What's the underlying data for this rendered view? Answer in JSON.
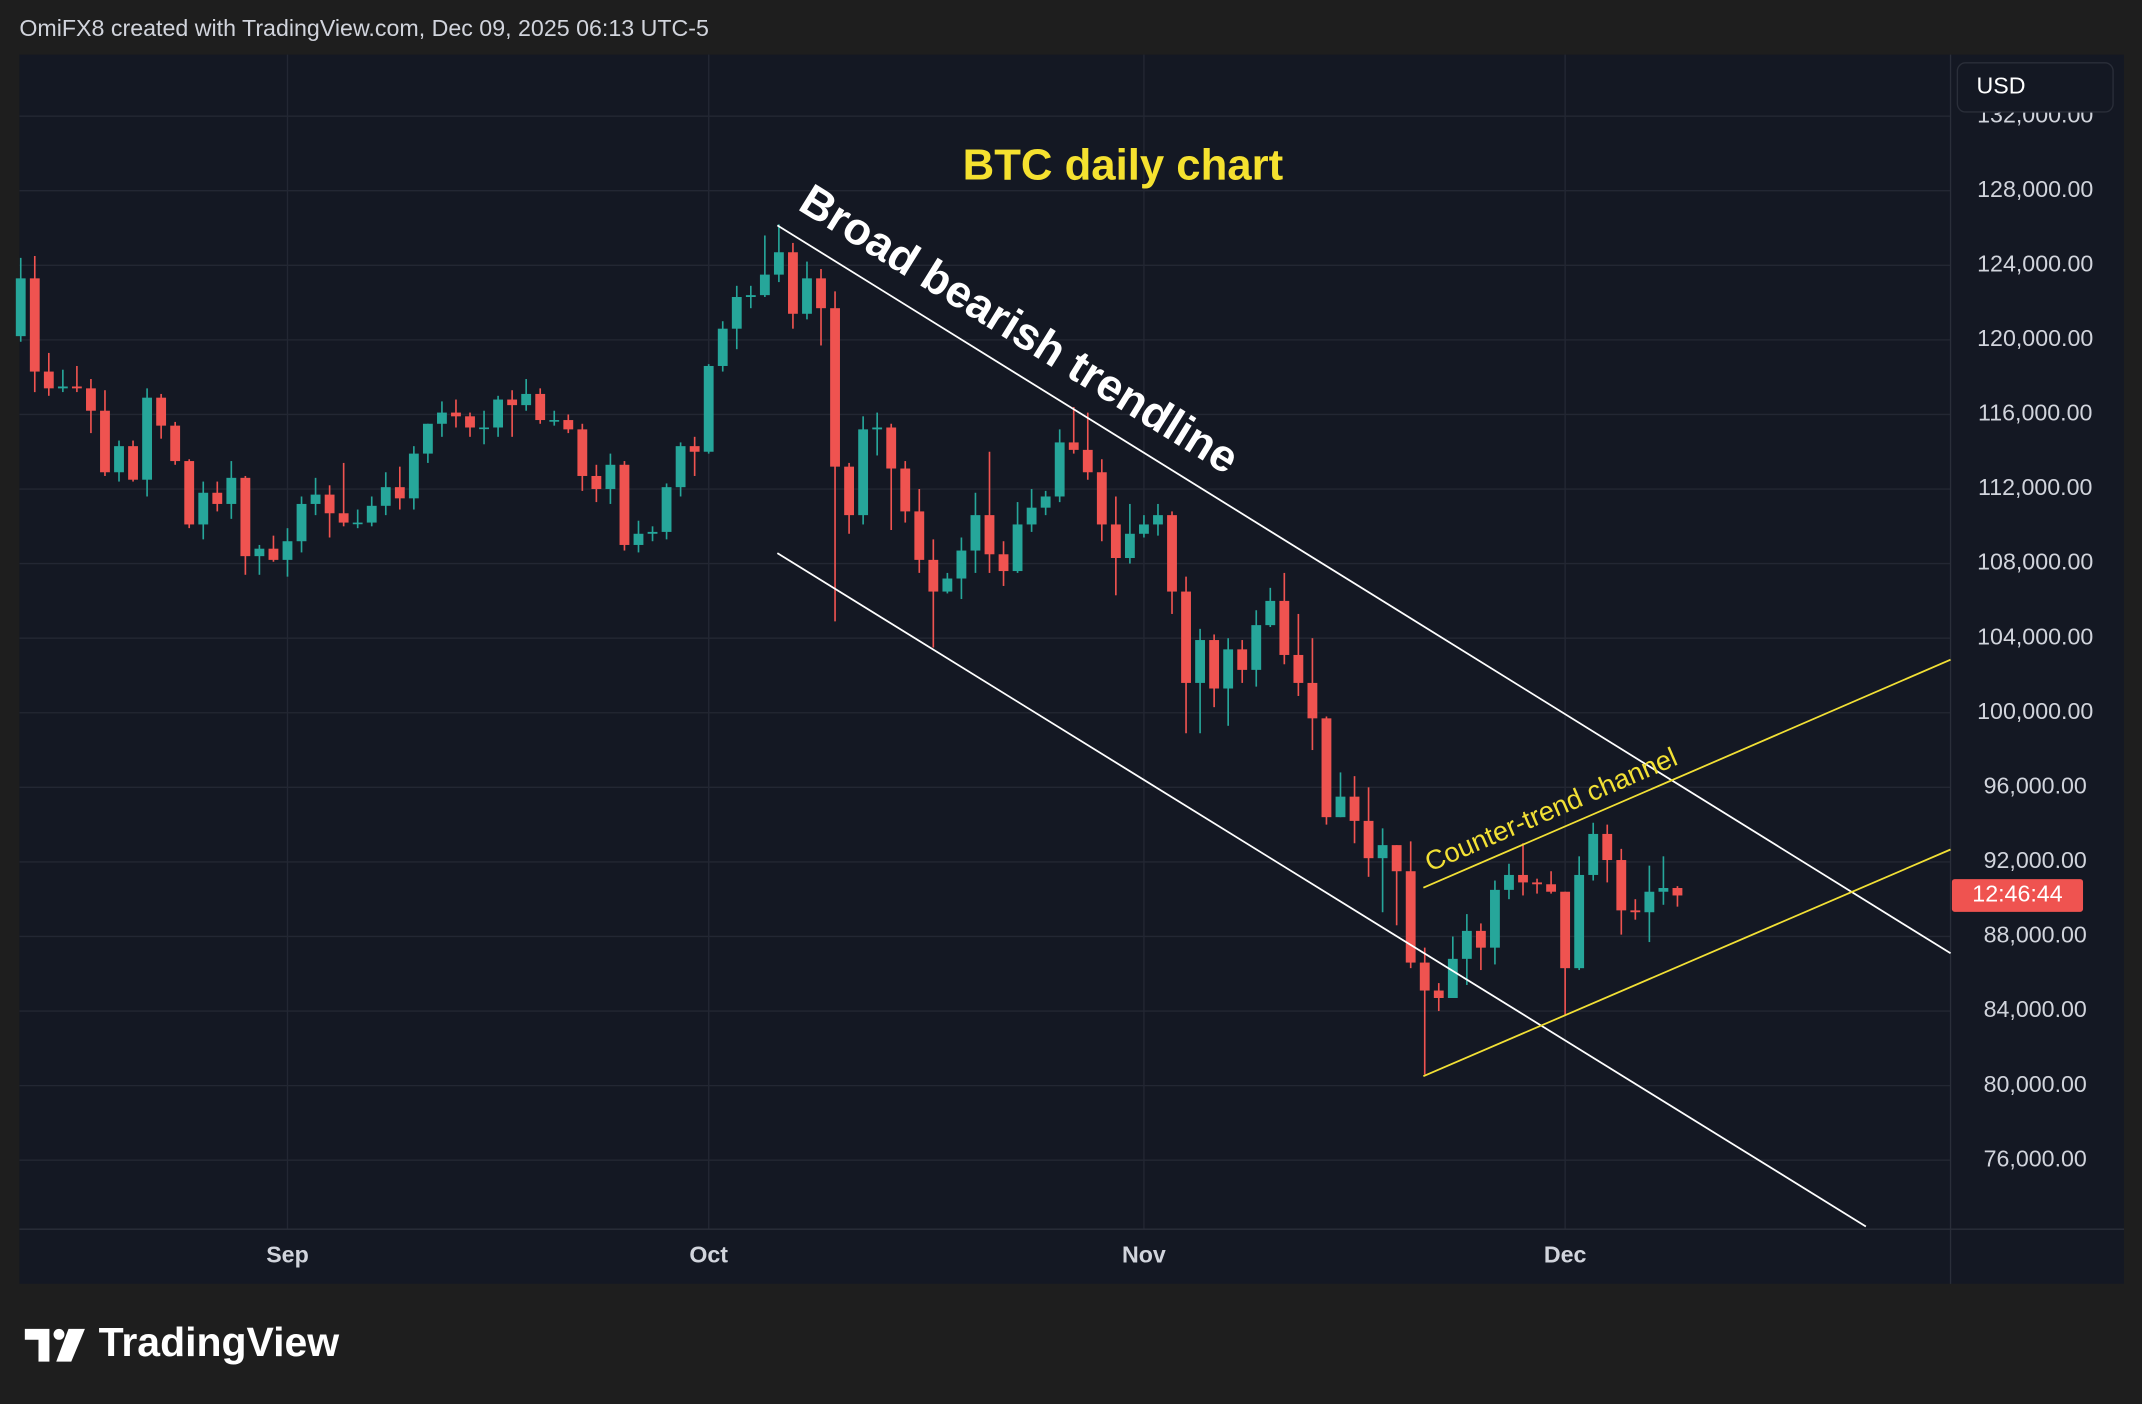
{
  "header": "OmiFX8 created with TradingView.com, Dec 09, 2025 06:13 UTC-5",
  "footer": {
    "logo": "TradingView"
  },
  "chart_data": {
    "type": "candlestick",
    "title": "BTC daily chart",
    "annotations": [
      "Broad bearish trendline",
      "Counter-trend channel"
    ],
    "currency": "USD",
    "countdown": "12:46:44",
    "up_color": "#26a69a",
    "down_color": "#ef5350",
    "grid": true,
    "categories": [
      null,
      null,
      null,
      null,
      null,
      null,
      null,
      null,
      null,
      null,
      null,
      null,
      null,
      null,
      null,
      null,
      null,
      null,
      null,
      "Sep",
      null,
      null,
      null,
      null,
      null,
      null,
      null,
      null,
      null,
      null,
      null,
      null,
      null,
      null,
      null,
      null,
      null,
      null,
      null,
      null,
      null,
      null,
      null,
      null,
      null,
      null,
      null,
      null,
      null,
      "Oct",
      null,
      null,
      null,
      null,
      null,
      null,
      null,
      null,
      null,
      null,
      null,
      null,
      null,
      null,
      null,
      null,
      null,
      null,
      null,
      null,
      null,
      null,
      null,
      null,
      null,
      null,
      null,
      null,
      null,
      null,
      "Nov",
      null,
      null,
      null,
      null,
      null,
      null,
      null,
      null,
      null,
      null,
      null,
      null,
      null,
      null,
      null,
      null,
      null,
      null,
      null,
      null,
      null,
      null,
      null,
      null,
      null,
      null,
      null,
      null,
      null,
      "Dec",
      null,
      null,
      null,
      null,
      null,
      null,
      null,
      null
    ],
    "open": [
      120200,
      123300,
      118300,
      117400,
      117500,
      117400,
      116200,
      112900,
      114300,
      112500,
      116900,
      115400,
      113500,
      110100,
      111800,
      111200,
      112600,
      108400,
      108800,
      108200,
      109200,
      111200,
      111700,
      110700,
      110200,
      110200,
      111100,
      112100,
      111500,
      113900,
      115500,
      116100,
      115900,
      115300,
      115300,
      116800,
      116500,
      117100,
      115700,
      115700,
      115200,
      112700,
      112000,
      113300,
      109000,
      109600,
      109700,
      112100,
      114300,
      114000,
      118600,
      120600,
      122300,
      122400,
      123500,
      124700,
      121400,
      123300,
      121700,
      113200,
      110600,
      115200,
      115300,
      113100,
      110800,
      108200,
      106500,
      107200,
      108700,
      110600,
      108500,
      107600,
      110100,
      111000,
      111600,
      114500,
      114100,
      112900,
      110100,
      108300,
      109600,
      110100,
      110600,
      106500,
      101600,
      103900,
      101300,
      103400,
      102300,
      104700,
      106000,
      103100,
      101600,
      99700,
      94400,
      95500,
      94200,
      92200,
      92900,
      91500,
      86600,
      85100,
      84700,
      86800,
      88300,
      87400,
      90500,
      91300,
      90900,
      90800,
      90400,
      86300,
      91300,
      93500,
      92100,
      89400,
      89300,
      90400,
      90600
    ],
    "high": [
      124400,
      124500,
      119300,
      118400,
      118600,
      117900,
      117300,
      114600,
      114600,
      117400,
      117100,
      115600,
      113600,
      112400,
      112400,
      113500,
      112700,
      109000,
      109500,
      109900,
      111600,
      112600,
      112200,
      113400,
      110900,
      111600,
      112900,
      113200,
      114300,
      115500,
      116700,
      116800,
      116100,
      116200,
      117000,
      117300,
      117900,
      117400,
      116200,
      116000,
      115500,
      113300,
      113900,
      113500,
      110300,
      110000,
      112300,
      114500,
      114800,
      118700,
      121000,
      122900,
      122900,
      125600,
      126200,
      125200,
      124200,
      123800,
      122600,
      113400,
      115900,
      116100,
      115500,
      113500,
      112000,
      109300,
      107500,
      109400,
      111800,
      114000,
      109200,
      111300,
      112000,
      111900,
      115200,
      116400,
      116100,
      113600,
      111600,
      111200,
      110600,
      111200,
      110800,
      107300,
      104500,
      104200,
      104000,
      103900,
      105500,
      106700,
      107500,
      105300,
      104000,
      99800,
      96800,
      96600,
      96000,
      93800,
      92900,
      93100,
      87400,
      85500,
      88000,
      89200,
      88700,
      91000,
      91900,
      93000,
      91100,
      91500,
      90400,
      92300,
      94100,
      94000,
      92700,
      90000,
      91800,
      92300,
      90700
    ],
    "low": [
      119900,
      117200,
      117000,
      117200,
      117200,
      115000,
      112700,
      112400,
      112400,
      111600,
      114700,
      113300,
      109900,
      109300,
      110800,
      110400,
      107400,
      107400,
      108100,
      107300,
      108600,
      110600,
      109400,
      110000,
      109900,
      110000,
      110600,
      110900,
      110900,
      113400,
      114800,
      115300,
      114800,
      114400,
      114800,
      114800,
      116200,
      115500,
      115400,
      115000,
      111900,
      111300,
      111200,
      108700,
      108600,
      109200,
      109300,
      111600,
      112700,
      113900,
      118300,
      119500,
      121700,
      122300,
      123100,
      120600,
      121100,
      119700,
      104900,
      109600,
      110100,
      113800,
      109800,
      110200,
      107500,
      103500,
      106400,
      106100,
      107500,
      107500,
      106800,
      107500,
      109700,
      110600,
      111300,
      113900,
      112500,
      109200,
      106300,
      108000,
      109400,
      109500,
      105300,
      98900,
      98900,
      100300,
      99300,
      101600,
      101400,
      104600,
      102600,
      100900,
      98000,
      94000,
      94400,
      93000,
      91200,
      89300,
      88600,
      86300,
      80600,
      84000,
      84700,
      85400,
      86200,
      86500,
      90000,
      90200,
      90300,
      90300,
      83800,
      86200,
      91000,
      90900,
      88100,
      88900,
      87700,
      89700,
      89600
    ],
    "close": [
      123300,
      118300,
      117400,
      117500,
      117400,
      116200,
      112900,
      114300,
      112500,
      116900,
      115400,
      113500,
      110100,
      111800,
      111200,
      112600,
      108400,
      108800,
      108200,
      109200,
      111200,
      111700,
      110700,
      110200,
      110200,
      111100,
      112100,
      111500,
      113900,
      115500,
      116100,
      115900,
      115300,
      115300,
      116800,
      116500,
      117100,
      115700,
      115700,
      115200,
      112700,
      112000,
      113300,
      109000,
      109600,
      109700,
      112100,
      114300,
      114000,
      118600,
      120600,
      122300,
      122400,
      123500,
      124700,
      121400,
      123300,
      121700,
      113200,
      110600,
      115200,
      115300,
      113100,
      110800,
      108200,
      106500,
      107200,
      108700,
      110600,
      108500,
      107600,
      110100,
      111000,
      111600,
      114500,
      114100,
      112900,
      110100,
      108300,
      109600,
      110100,
      110600,
      106500,
      101600,
      103900,
      101300,
      103400,
      102300,
      104700,
      106000,
      103100,
      101600,
      99700,
      94400,
      95500,
      94200,
      92200,
      92900,
      91500,
      86600,
      85100,
      84700,
      86800,
      88300,
      87400,
      90500,
      91300,
      90900,
      90800,
      90400,
      86300,
      91300,
      93500,
      92100,
      89400,
      89300,
      90400,
      90600,
      90200
    ],
    "ylim": [
      72300,
      135300
    ],
    "yticks": [
      {
        "value": 76000,
        "label": "76,000.00"
      },
      {
        "value": 80000,
        "label": "80,000.00"
      },
      {
        "value": 84000,
        "label": "84,000.00"
      },
      {
        "value": 88000,
        "label": "88,000.00"
      },
      {
        "value": 92000,
        "label": "92,000.00"
      },
      {
        "value": 96000,
        "label": "96,000.00"
      },
      {
        "value": 100000,
        "label": "100,000.00"
      },
      {
        "value": 104000,
        "label": "104,000.00"
      },
      {
        "value": 108000,
        "label": "108,000.00"
      },
      {
        "value": 112000,
        "label": "112,000.00"
      },
      {
        "value": 116000,
        "label": "116,000.00"
      },
      {
        "value": 120000,
        "label": "120,000.00"
      },
      {
        "value": 124000,
        "label": "124,000.00"
      },
      {
        "value": 128000,
        "label": "128,000.00"
      },
      {
        "value": 132000,
        "label": "132,000.00"
      }
    ]
  }
}
